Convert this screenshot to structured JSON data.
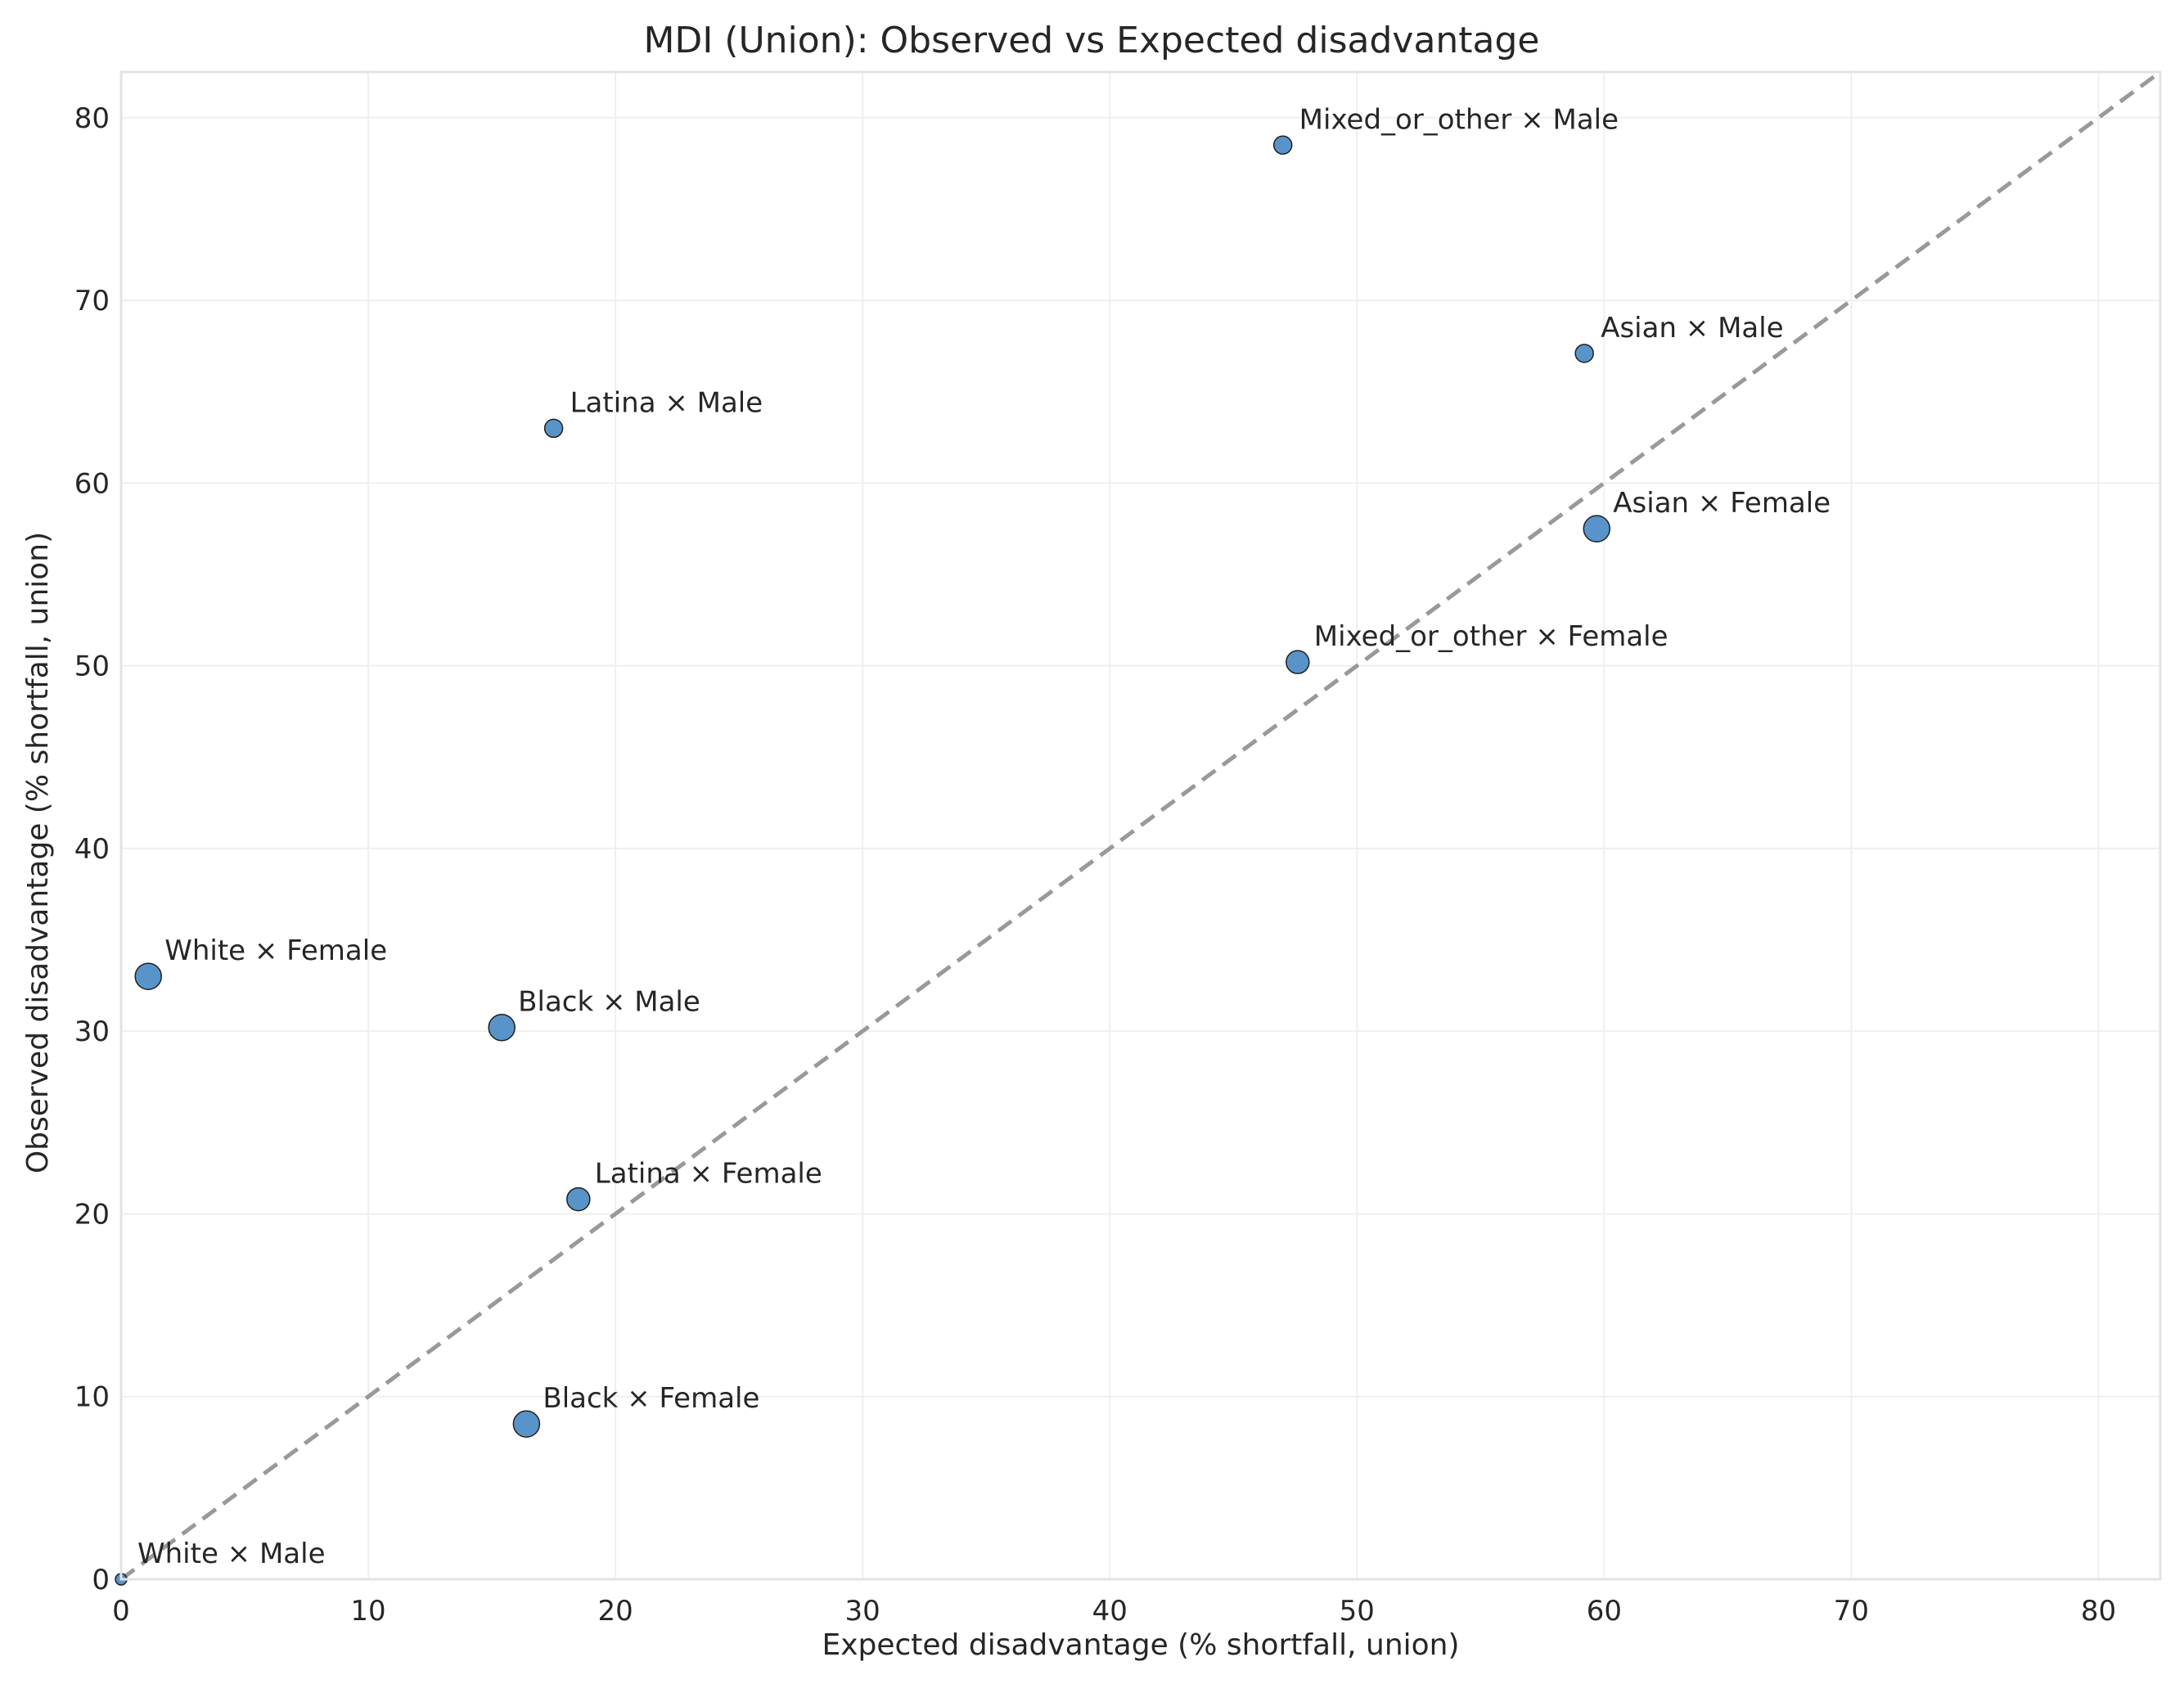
{
  "chart_data": {
    "type": "scatter",
    "title": "MDI (Union): Observed vs Expected disadvantage",
    "xlabel": "Expected disadvantage (% shortfall, union)",
    "ylabel": "Observed disadvantage (% shortfall, union)",
    "xlim": [
      0,
      82.5
    ],
    "ylim": [
      0,
      82.5
    ],
    "xticks": [
      0,
      10,
      20,
      30,
      40,
      50,
      60,
      70,
      80
    ],
    "yticks": [
      0,
      10,
      20,
      30,
      40,
      50,
      60,
      70,
      80
    ],
    "grid": true,
    "reference_line": "y = x, dashed gray",
    "point_color": "#4a8bc4",
    "point_edge_color": "#1f1f1f",
    "line_color": "#999999",
    "points": [
      {
        "label": "Mixed_or_other × Male",
        "x": 47.0,
        "y": 78.5,
        "size": "small"
      },
      {
        "label": "Asian × Male",
        "x": 59.2,
        "y": 67.1,
        "size": "small"
      },
      {
        "label": "Latina × Male",
        "x": 17.5,
        "y": 63.0,
        "size": "small"
      },
      {
        "label": "Asian × Female",
        "x": 59.7,
        "y": 57.5,
        "size": "large"
      },
      {
        "label": "Mixed_or_other × Female",
        "x": 47.6,
        "y": 50.2,
        "size": "medium"
      },
      {
        "label": "White × Female",
        "x": 1.1,
        "y": 33.0,
        "size": "large"
      },
      {
        "label": "Black × Male",
        "x": 15.4,
        "y": 30.2,
        "size": "large"
      },
      {
        "label": "Latina × Female",
        "x": 18.5,
        "y": 20.8,
        "size": "medium"
      },
      {
        "label": "Black × Female",
        "x": 16.4,
        "y": 8.5,
        "size": "large"
      },
      {
        "label": "White × Male",
        "x": 0.0,
        "y": 0.0,
        "size": "tiny"
      }
    ]
  }
}
